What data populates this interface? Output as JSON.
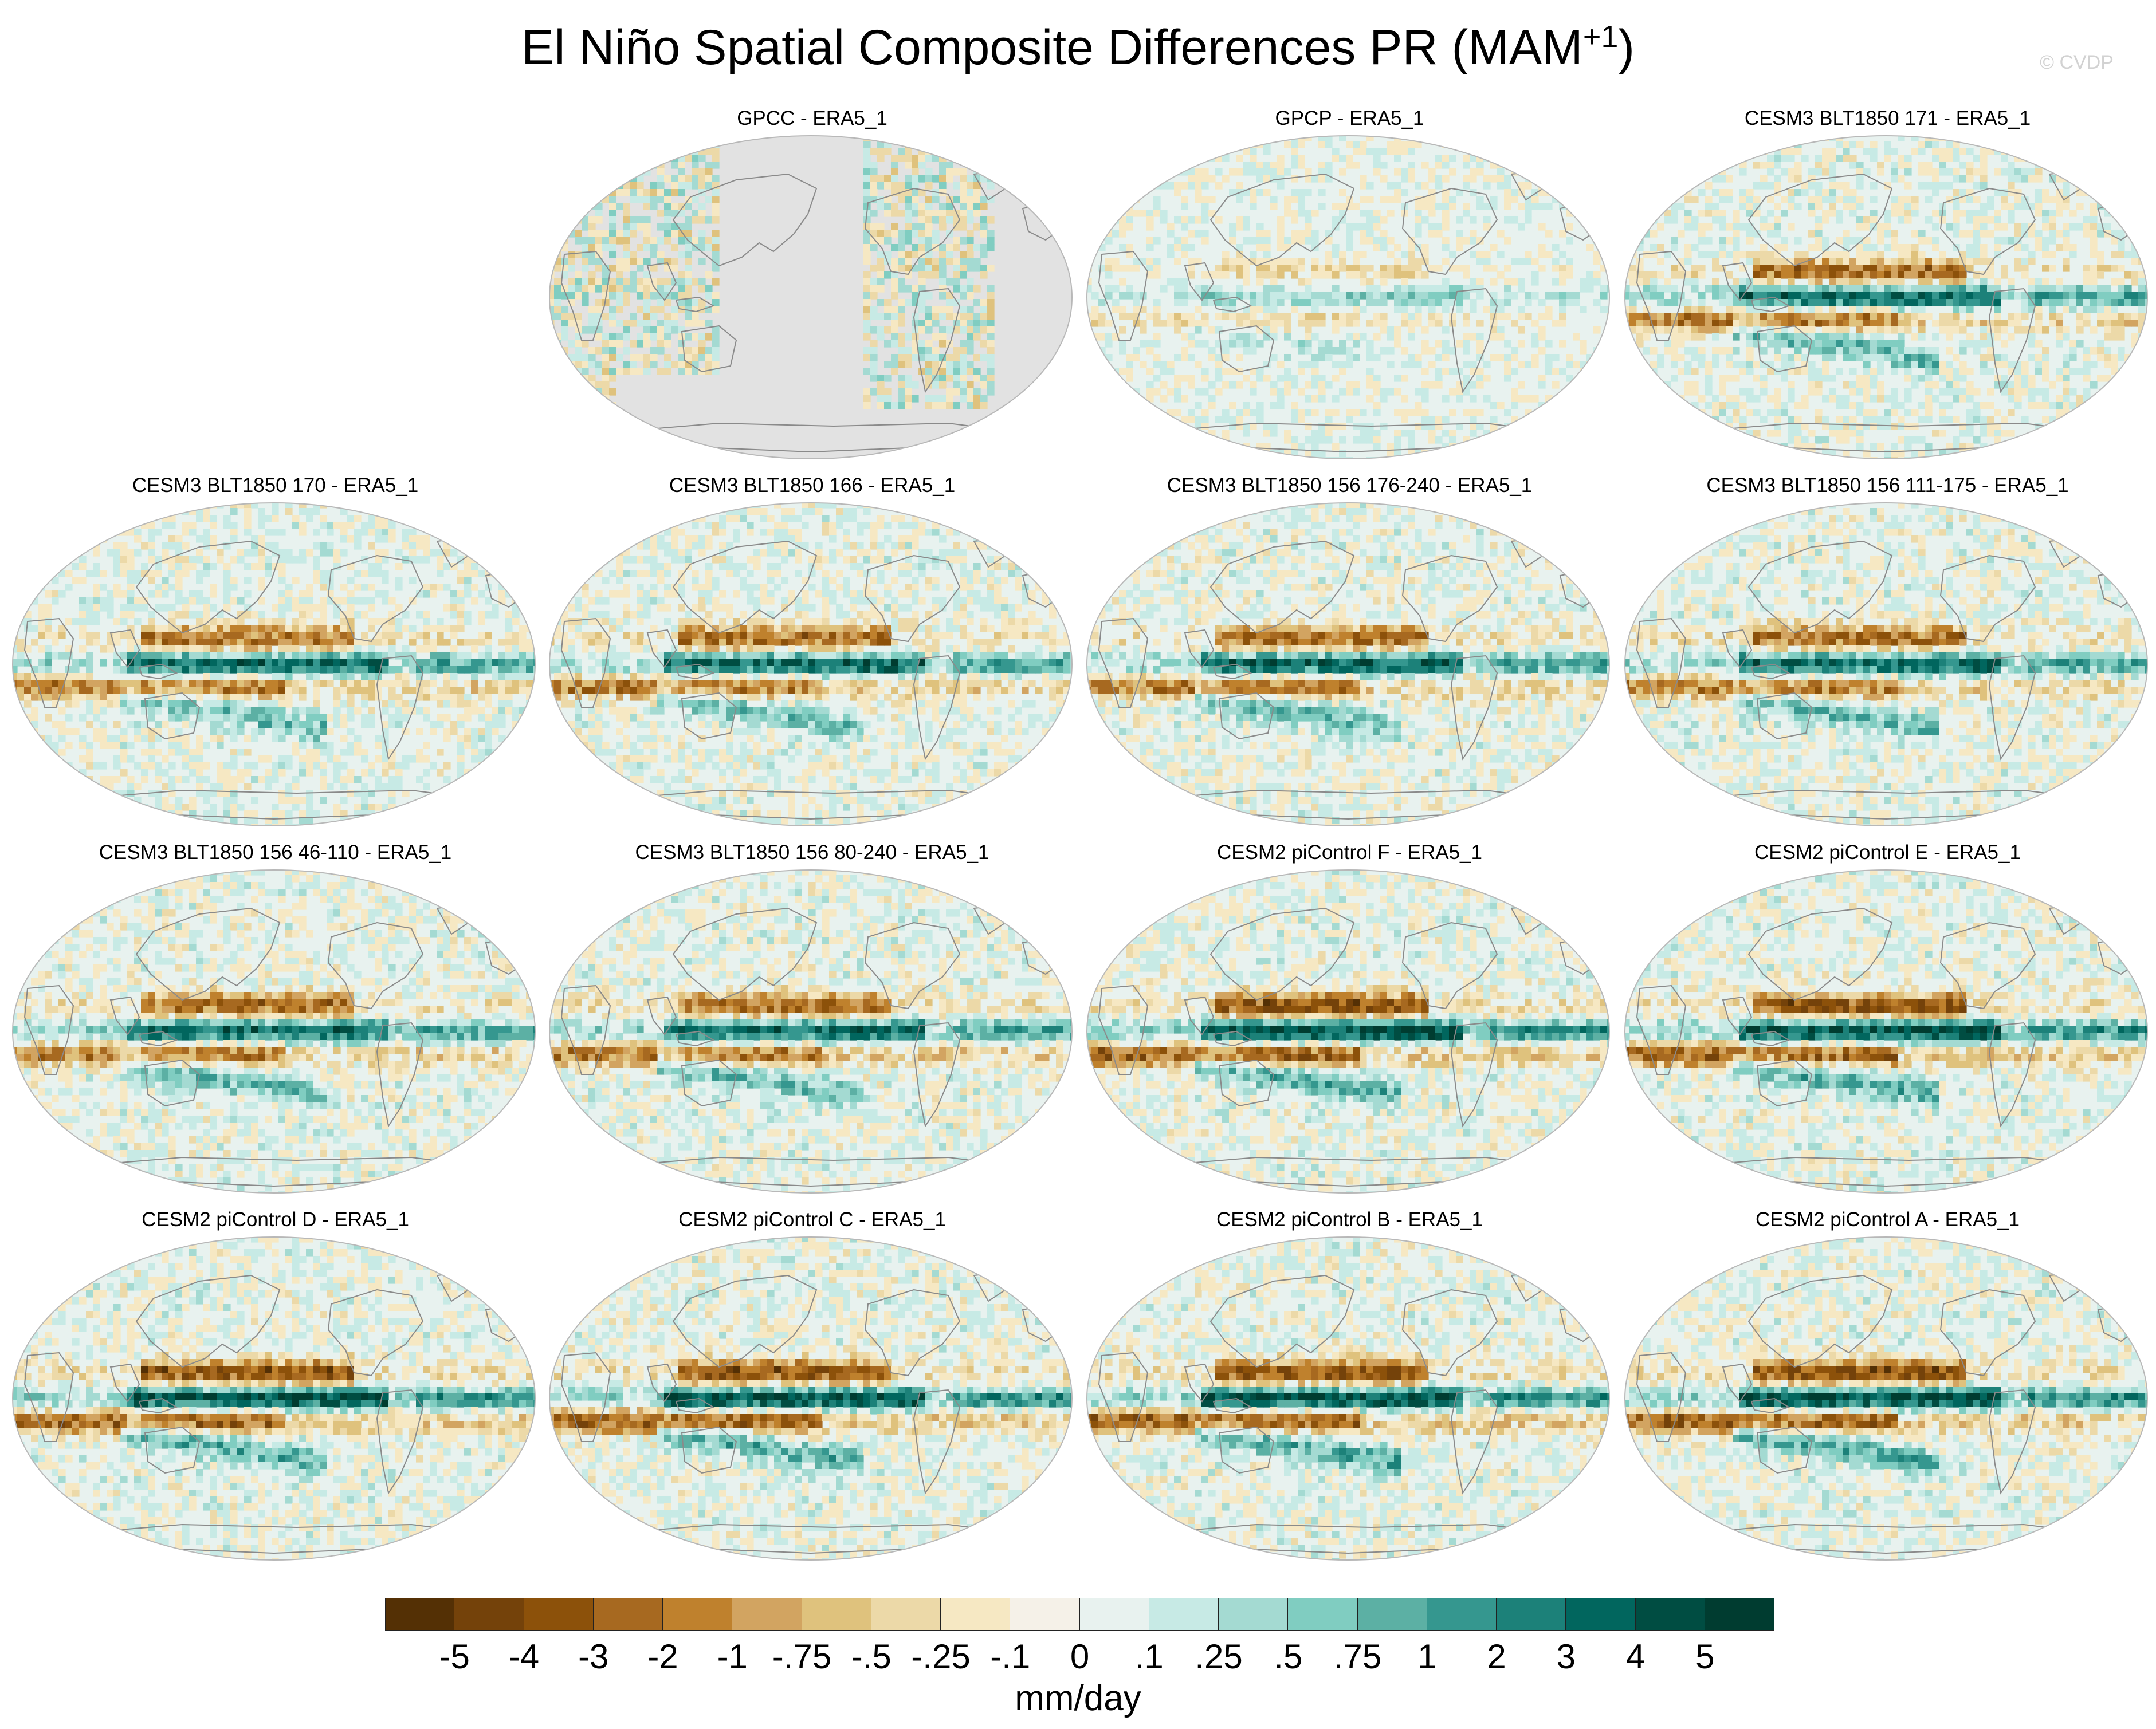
{
  "figure": {
    "title_main": "El Niño Spatial Composite Differences PR (MAM",
    "title_sup": "+1",
    "title_close": ")",
    "watermark": "© CVDP"
  },
  "panels": [
    {
      "title": "GPCC - ERA5_1",
      "pattern": "obs_land"
    },
    {
      "title": "GPCP - ERA5_1",
      "pattern": "obs_weak"
    },
    {
      "title": "CESM3 BLT1850 171 - ERA5_1",
      "pattern": "model"
    },
    {
      "title": "CESM3 BLT1850 170 - ERA5_1",
      "pattern": "model"
    },
    {
      "title": "CESM3 BLT1850 166 - ERA5_1",
      "pattern": "model"
    },
    {
      "title": "CESM3 BLT1850 156 176-240 - ERA5_1",
      "pattern": "model"
    },
    {
      "title": "CESM3 BLT1850 156 111-175 - ERA5_1",
      "pattern": "model"
    },
    {
      "title": "CESM3 BLT1850 156 46-110 - ERA5_1",
      "pattern": "model"
    },
    {
      "title": "CESM3 BLT1850 156 80-240 - ERA5_1",
      "pattern": "model"
    },
    {
      "title": "CESM2 piControl F - ERA5_1",
      "pattern": "model_strong"
    },
    {
      "title": "CESM2 piControl E - ERA5_1",
      "pattern": "model_strong"
    },
    {
      "title": "CESM2 piControl D - ERA5_1",
      "pattern": "model_strong"
    },
    {
      "title": "CESM2 piControl C - ERA5_1",
      "pattern": "model_strong"
    },
    {
      "title": "CESM2 piControl B - ERA5_1",
      "pattern": "model_strong"
    },
    {
      "title": "CESM2 piControl A - ERA5_1",
      "pattern": "model_strong"
    }
  ],
  "colorbar": {
    "units": "mm/day",
    "tick_labels": [
      "-5",
      "-4",
      "-3",
      "-2",
      "-1",
      "-.75",
      "-.5",
      "-.25",
      "-.1",
      "0",
      ".1",
      ".25",
      ".5",
      ".75",
      "1",
      "2",
      "3",
      "4",
      "5"
    ],
    "colors": [
      "#543005",
      "#74420a",
      "#8c510a",
      "#a76920",
      "#bf812d",
      "#d2a461",
      "#dfc27d",
      "#ecd9a8",
      "#f6e8c3",
      "#f5f1e8",
      "#e8f2ef",
      "#c7eae5",
      "#a4dad2",
      "#80cdc1",
      "#5cb0a4",
      "#35978f",
      "#1c8179",
      "#01665e",
      "#004d42",
      "#003c30"
    ]
  },
  "missing_color": "#e2e2e2",
  "coast_color": "#8a8a8a"
}
